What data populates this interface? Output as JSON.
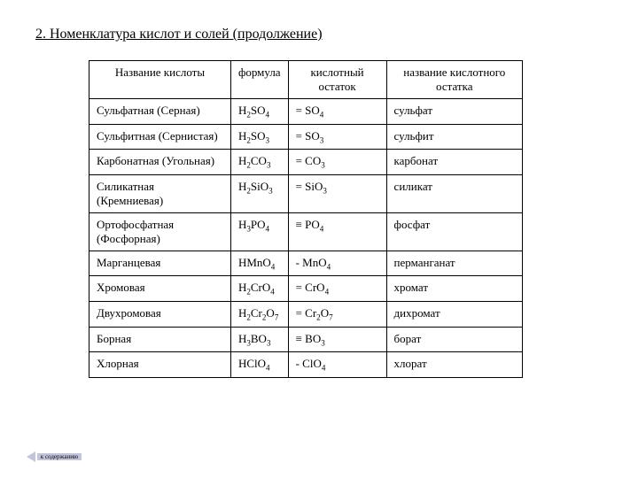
{
  "title": "2. Номенклатура кислот и солей  (продолжение)",
  "headers": {
    "h1": "Название кислоты",
    "h2": "формула",
    "h3": "кислотный остаток",
    "h4": "название кислотного остатка"
  },
  "rows": [
    {
      "name": "Сульфатная (Серная)",
      "formula": "H<sub>2</sub>SO<sub>4</sub>",
      "residue": "= SO<sub>4</sub>",
      "resname": "сульфат"
    },
    {
      "name": "Сульфитная (Сернистая)",
      "formula": "H<sub>2</sub>SO<sub>3</sub>",
      "residue": "= SO<sub>3</sub>",
      "resname": "сульфит"
    },
    {
      "name": "Карбонатная (Угольная)",
      "formula": "H<sub>2</sub>CO<sub>3</sub>",
      "residue": "= CO<sub>3</sub>",
      "resname": "карбонат"
    },
    {
      "name": "Силикатная (Кремниевая)",
      "formula": "H<sub>2</sub>SiO<sub>3</sub>",
      "residue": "= SiO<sub>3</sub>",
      "resname": "силикат"
    },
    {
      "name": "Ортофосфатная (Фосфорная)",
      "formula": "H<sub>3</sub>PO<sub>4</sub>",
      "residue": "≡ PO<sub>4</sub>",
      "resname": "фосфат"
    },
    {
      "name": "Марганцевая",
      "formula": "HMnO<sub>4</sub>",
      "residue": "- MnO<sub>4</sub>",
      "resname": "перманганат"
    },
    {
      "name": "Хромовая",
      "formula": "H<sub>2</sub>CrO<sub>4</sub>",
      "residue": "= CrO<sub>4</sub>",
      "resname": "хромат"
    },
    {
      "name": "Двухромовая",
      "formula": "H<sub>2</sub>Cr<sub>2</sub>O<sub>7</sub>",
      "residue": "= Cr<sub>2</sub>O<sub>7</sub>",
      "resname": "дихромат"
    },
    {
      "name": "Борная",
      "formula": "H<sub>3</sub>BO<sub>3</sub>",
      "residue": "≡ BO<sub>3</sub>",
      "resname": "борат"
    },
    {
      "name": "Хлорная",
      "formula": "HClO<sub>4</sub>",
      "residue": "- ClO<sub>4</sub>",
      "resname": "хлорат"
    }
  ],
  "backlink": "к содержанию",
  "colors": {
    "arrow": "#c4c4dd",
    "border": "#000000",
    "background": "#ffffff"
  }
}
